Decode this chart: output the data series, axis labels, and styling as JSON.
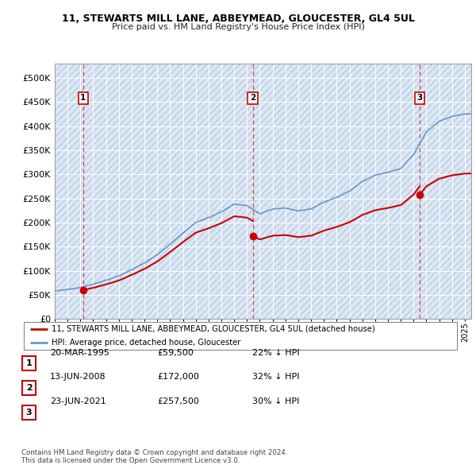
{
  "title1": "11, STEWARTS MILL LANE, ABBEYMEAD, GLOUCESTER, GL4 5UL",
  "title2": "Price paid vs. HM Land Registry's House Price Index (HPI)",
  "background_color": "#dce8f5",
  "hatch_color": "#c0d4eb",
  "grid_color": "#ffffff",
  "sale_dates": [
    1995.22,
    2008.45,
    2021.47
  ],
  "sale_prices": [
    59500,
    172000,
    257500
  ],
  "sale_labels": [
    "1",
    "2",
    "3"
  ],
  "legend_line1": "11, STEWARTS MILL LANE, ABBEYMEAD, GLOUCESTER, GL4 5UL (detached house)",
  "legend_line2": "HPI: Average price, detached house, Gloucester",
  "table_rows": [
    [
      "1",
      "20-MAR-1995",
      "£59,500",
      "22% ↓ HPI"
    ],
    [
      "2",
      "13-JUN-2008",
      "£172,000",
      "32% ↓ HPI"
    ],
    [
      "3",
      "23-JUN-2021",
      "£257,500",
      "30% ↓ HPI"
    ]
  ],
  "footer": "Contains HM Land Registry data © Crown copyright and database right 2024.\nThis data is licensed under the Open Government Licence v3.0.",
  "hpi_color": "#6699cc",
  "price_color": "#cc0000",
  "dot_color": "#cc0000",
  "vline_color": "#dd4444",
  "xmin": 1993,
  "xmax": 2025.5,
  "ymin": 0,
  "ymax": 530000,
  "yticks": [
    0,
    50000,
    100000,
    150000,
    200000,
    250000,
    300000,
    350000,
    400000,
    450000,
    500000
  ],
  "hpi_years": [
    1993,
    1994,
    1995,
    1996,
    1997,
    1998,
    1999,
    2000,
    2001,
    2002,
    2003,
    2004,
    2005,
    2006,
    2007,
    2008,
    2009,
    2010,
    2011,
    2012,
    2013,
    2014,
    2015,
    2016,
    2017,
    2018,
    2019,
    2020,
    2021,
    2022,
    2023,
    2024,
    2025
  ],
  "hpi_prices": [
    58000,
    61000,
    65000,
    72000,
    80000,
    89000,
    102000,
    116000,
    133000,
    155000,
    178000,
    200000,
    210000,
    222000,
    238000,
    235000,
    218000,
    228000,
    230000,
    224000,
    228000,
    242000,
    252000,
    265000,
    285000,
    298000,
    304000,
    312000,
    341000,
    388000,
    410000,
    420000,
    425000
  ]
}
